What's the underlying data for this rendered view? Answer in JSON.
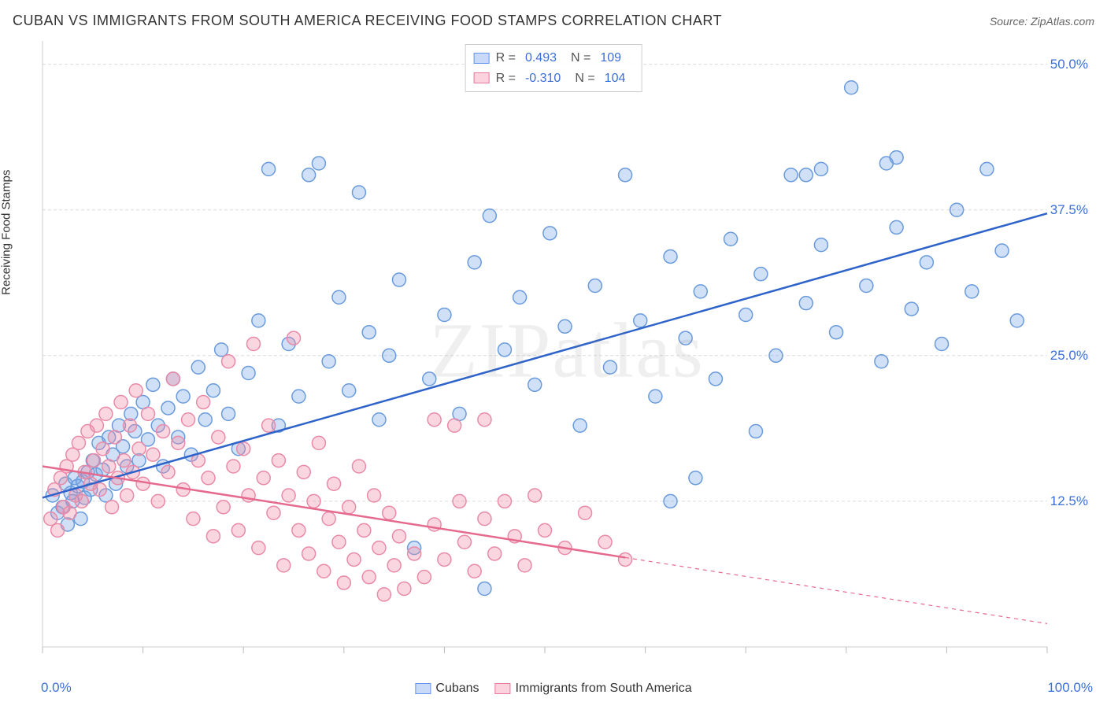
{
  "title": "CUBAN VS IMMIGRANTS FROM SOUTH AMERICA RECEIVING FOOD STAMPS CORRELATION CHART",
  "source": "Source: ZipAtlas.com",
  "watermark": "ZIPatlas",
  "y_axis_label": "Receiving Food Stamps",
  "chart": {
    "type": "scatter",
    "background_color": "#ffffff",
    "grid_color": "#dcdcdc",
    "grid_dash": "4,3",
    "xlim": [
      0,
      100
    ],
    "ylim": [
      0,
      52
    ],
    "x_ticks": [
      0,
      10,
      20,
      30,
      40,
      50,
      60,
      70,
      80,
      90,
      100
    ],
    "y_ticks": [
      12.5,
      25.0,
      37.5,
      50.0
    ],
    "y_tick_labels": [
      "12.5%",
      "25.0%",
      "37.5%",
      "50.0%"
    ],
    "x_min_label": "0.0%",
    "x_max_label": "100.0%",
    "marker_radius": 8.5,
    "marker_stroke_width": 1.5,
    "trendline_width": 2.5,
    "series": [
      {
        "name": "Cubans",
        "color_fill": "rgba(120,165,230,0.35)",
        "color_stroke": "#6a9bdc",
        "trendline_color": "#2e63c9",
        "R": "0.493",
        "N": "109",
        "trend": {
          "x1": 0,
          "y1": 12.8,
          "x2": 100,
          "y2": 37.2,
          "solid_until_x": 100
        },
        "points": [
          [
            1.0,
            13.0
          ],
          [
            1.5,
            11.5
          ],
          [
            2.0,
            12.0
          ],
          [
            2.3,
            14.0
          ],
          [
            2.5,
            10.5
          ],
          [
            2.8,
            13.2
          ],
          [
            3.0,
            12.5
          ],
          [
            3.2,
            14.5
          ],
          [
            3.5,
            13.8
          ],
          [
            3.8,
            11.0
          ],
          [
            4.0,
            14.2
          ],
          [
            4.2,
            12.8
          ],
          [
            4.5,
            15.0
          ],
          [
            4.8,
            13.5
          ],
          [
            5.0,
            16.0
          ],
          [
            5.3,
            14.8
          ],
          [
            5.6,
            17.5
          ],
          [
            6.0,
            15.2
          ],
          [
            6.3,
            13.0
          ],
          [
            6.6,
            18.0
          ],
          [
            7.0,
            16.5
          ],
          [
            7.3,
            14.0
          ],
          [
            7.6,
            19.0
          ],
          [
            8.0,
            17.2
          ],
          [
            8.4,
            15.5
          ],
          [
            8.8,
            20.0
          ],
          [
            9.2,
            18.5
          ],
          [
            9.6,
            16.0
          ],
          [
            10.0,
            21.0
          ],
          [
            10.5,
            17.8
          ],
          [
            11.0,
            22.5
          ],
          [
            11.5,
            19.0
          ],
          [
            12.0,
            15.5
          ],
          [
            12.5,
            20.5
          ],
          [
            13.0,
            23.0
          ],
          [
            13.5,
            18.0
          ],
          [
            14.0,
            21.5
          ],
          [
            14.8,
            16.5
          ],
          [
            15.5,
            24.0
          ],
          [
            16.2,
            19.5
          ],
          [
            17.0,
            22.0
          ],
          [
            17.8,
            25.5
          ],
          [
            18.5,
            20.0
          ],
          [
            19.5,
            17.0
          ],
          [
            20.5,
            23.5
          ],
          [
            21.5,
            28.0
          ],
          [
            22.5,
            41.0
          ],
          [
            23.5,
            19.0
          ],
          [
            24.5,
            26.0
          ],
          [
            25.5,
            21.5
          ],
          [
            26.5,
            40.5
          ],
          [
            27.5,
            41.5
          ],
          [
            28.5,
            24.5
          ],
          [
            29.5,
            30.0
          ],
          [
            30.5,
            22.0
          ],
          [
            31.5,
            39.0
          ],
          [
            32.5,
            27.0
          ],
          [
            33.5,
            19.5
          ],
          [
            34.5,
            25.0
          ],
          [
            35.5,
            31.5
          ],
          [
            37.0,
            8.5
          ],
          [
            38.5,
            23.0
          ],
          [
            40.0,
            28.5
          ],
          [
            41.5,
            20.0
          ],
          [
            43.0,
            33.0
          ],
          [
            44.5,
            37.0
          ],
          [
            46.0,
            25.5
          ],
          [
            47.5,
            30.0
          ],
          [
            44.0,
            5.0
          ],
          [
            49.0,
            22.5
          ],
          [
            50.5,
            35.5
          ],
          [
            52.0,
            27.5
          ],
          [
            53.5,
            19.0
          ],
          [
            55.0,
            31.0
          ],
          [
            56.5,
            24.0
          ],
          [
            58.0,
            40.5
          ],
          [
            59.5,
            28.0
          ],
          [
            61.0,
            21.5
          ],
          [
            62.5,
            33.5
          ],
          [
            64.0,
            26.5
          ],
          [
            65.5,
            30.5
          ],
          [
            67.0,
            23.0
          ],
          [
            68.5,
            35.0
          ],
          [
            70.0,
            28.5
          ],
          [
            71.5,
            32.0
          ],
          [
            73.0,
            25.0
          ],
          [
            74.5,
            40.5
          ],
          [
            76.0,
            29.5
          ],
          [
            77.5,
            34.5
          ],
          [
            79.0,
            27.0
          ],
          [
            80.5,
            48.0
          ],
          [
            82.0,
            31.0
          ],
          [
            83.5,
            24.5
          ],
          [
            85.0,
            36.0
          ],
          [
            76.0,
            40.5
          ],
          [
            77.5,
            41.0
          ],
          [
            86.5,
            29.0
          ],
          [
            88.0,
            33.0
          ],
          [
            89.5,
            26.0
          ],
          [
            62.5,
            12.5
          ],
          [
            91.0,
            37.5
          ],
          [
            92.5,
            30.5
          ],
          [
            94.0,
            41.0
          ],
          [
            65.0,
            14.5
          ],
          [
            71.0,
            18.5
          ],
          [
            95.5,
            34.0
          ],
          [
            84.0,
            41.5
          ],
          [
            85.0,
            42.0
          ],
          [
            97.0,
            28.0
          ]
        ]
      },
      {
        "name": "Immigrants from South America",
        "color_fill": "rgba(240,140,165,0.35)",
        "color_stroke": "#e88aa8",
        "trendline_color": "#e56a8e",
        "R": "-0.310",
        "N": "104",
        "trend": {
          "x1": 0,
          "y1": 15.5,
          "x2": 100,
          "y2": 2.0,
          "solid_until_x": 58
        },
        "points": [
          [
            0.8,
            11.0
          ],
          [
            1.2,
            13.5
          ],
          [
            1.5,
            10.0
          ],
          [
            1.8,
            14.5
          ],
          [
            2.1,
            12.0
          ],
          [
            2.4,
            15.5
          ],
          [
            2.7,
            11.5
          ],
          [
            3.0,
            16.5
          ],
          [
            3.3,
            13.0
          ],
          [
            3.6,
            17.5
          ],
          [
            3.9,
            12.5
          ],
          [
            4.2,
            15.0
          ],
          [
            4.5,
            18.5
          ],
          [
            4.8,
            14.0
          ],
          [
            5.1,
            16.0
          ],
          [
            5.4,
            19.0
          ],
          [
            5.7,
            13.5
          ],
          [
            6.0,
            17.0
          ],
          [
            6.3,
            20.0
          ],
          [
            6.6,
            15.5
          ],
          [
            6.9,
            12.0
          ],
          [
            7.2,
            18.0
          ],
          [
            7.5,
            14.5
          ],
          [
            7.8,
            21.0
          ],
          [
            8.1,
            16.0
          ],
          [
            8.4,
            13.0
          ],
          [
            8.7,
            19.0
          ],
          [
            9.0,
            15.0
          ],
          [
            9.3,
            22.0
          ],
          [
            9.6,
            17.0
          ],
          [
            10.0,
            14.0
          ],
          [
            10.5,
            20.0
          ],
          [
            11.0,
            16.5
          ],
          [
            11.5,
            12.5
          ],
          [
            12.0,
            18.5
          ],
          [
            12.5,
            15.0
          ],
          [
            13.0,
            23.0
          ],
          [
            13.5,
            17.5
          ],
          [
            14.0,
            13.5
          ],
          [
            14.5,
            19.5
          ],
          [
            15.0,
            11.0
          ],
          [
            15.5,
            16.0
          ],
          [
            16.0,
            21.0
          ],
          [
            16.5,
            14.5
          ],
          [
            17.0,
            9.5
          ],
          [
            17.5,
            18.0
          ],
          [
            18.0,
            12.0
          ],
          [
            18.5,
            24.5
          ],
          [
            19.0,
            15.5
          ],
          [
            19.5,
            10.0
          ],
          [
            20.0,
            17.0
          ],
          [
            20.5,
            13.0
          ],
          [
            21.0,
            26.0
          ],
          [
            21.5,
            8.5
          ],
          [
            22.0,
            14.5
          ],
          [
            22.5,
            19.0
          ],
          [
            23.0,
            11.5
          ],
          [
            23.5,
            16.0
          ],
          [
            24.0,
            7.0
          ],
          [
            24.5,
            13.0
          ],
          [
            25.0,
            26.5
          ],
          [
            25.5,
            10.0
          ],
          [
            26.0,
            15.0
          ],
          [
            26.5,
            8.0
          ],
          [
            27.0,
            12.5
          ],
          [
            27.5,
            17.5
          ],
          [
            28.0,
            6.5
          ],
          [
            28.5,
            11.0
          ],
          [
            29.0,
            14.0
          ],
          [
            29.5,
            9.0
          ],
          [
            30.0,
            5.5
          ],
          [
            30.5,
            12.0
          ],
          [
            31.0,
            7.5
          ],
          [
            31.5,
            15.5
          ],
          [
            32.0,
            10.0
          ],
          [
            32.5,
            6.0
          ],
          [
            33.0,
            13.0
          ],
          [
            33.5,
            8.5
          ],
          [
            34.0,
            4.5
          ],
          [
            34.5,
            11.5
          ],
          [
            35.0,
            7.0
          ],
          [
            35.5,
            9.5
          ],
          [
            36.0,
            5.0
          ],
          [
            37.0,
            8.0
          ],
          [
            38.0,
            6.0
          ],
          [
            39.0,
            10.5
          ],
          [
            40.0,
            7.5
          ],
          [
            41.0,
            19.0
          ],
          [
            42.0,
            9.0
          ],
          [
            43.0,
            6.5
          ],
          [
            44.0,
            11.0
          ],
          [
            45.0,
            8.0
          ],
          [
            46.0,
            12.5
          ],
          [
            39.0,
            19.5
          ],
          [
            47.0,
            9.5
          ],
          [
            48.0,
            7.0
          ],
          [
            44.0,
            19.5
          ],
          [
            49.0,
            13.0
          ],
          [
            50.0,
            10.0
          ],
          [
            41.5,
            12.5
          ],
          [
            52.0,
            8.5
          ],
          [
            54.0,
            11.5
          ],
          [
            56.0,
            9.0
          ],
          [
            58.0,
            7.5
          ]
        ]
      }
    ]
  },
  "top_legend_labels": {
    "R": "R =",
    "N": "N ="
  },
  "bottom_legend": [
    {
      "label": "Cubans",
      "swatch": "blue"
    },
    {
      "label": "Immigrants from South America",
      "swatch": "pink"
    }
  ]
}
